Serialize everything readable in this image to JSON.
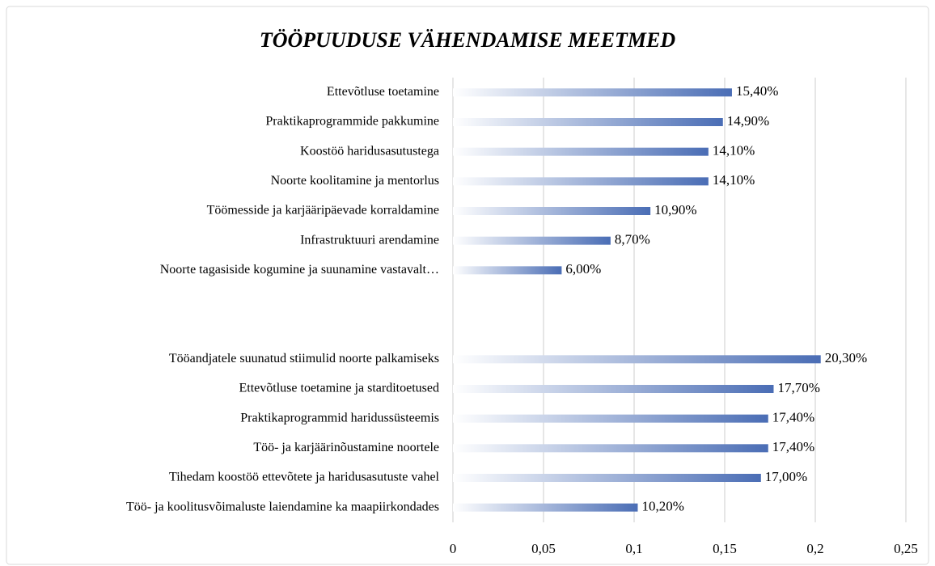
{
  "chart_data": {
    "type": "barh",
    "title": "TÖÖPUUDUSE VÄHENDAMISE MEETMED",
    "categories": [
      "Ettevõtluse toetamine",
      "Praktikaprogrammide pakkumine",
      "Koostöö haridusasutustega",
      "Noorte koolitamine ja mentorlus",
      "Töömesside ja karjääripäevade korraldamine",
      "Infrastruktuuri arendamine",
      "Noorte tagasiside kogumine ja suunamine vastavalt…",
      null,
      null,
      "Tööandjatele suunatud stiimulid noorte palkamiseks",
      "Ettevõtluse toetamine ja starditoetused",
      "Praktikaprogrammid haridussüsteemis",
      "Töö- ja karjäärinõustamine noortele",
      "Tihedam koostöö ettevõtete ja haridusasutuste vahel",
      "Töö- ja koolitusvõimaluste laiendamine ka maapiirkondades"
    ],
    "values": [
      0.154,
      0.149,
      0.141,
      0.141,
      0.109,
      0.087,
      0.06,
      null,
      null,
      0.203,
      0.177,
      0.174,
      0.174,
      0.17,
      0.102
    ],
    "value_labels": [
      "15,40%",
      "14,90%",
      "14,10%",
      "14,10%",
      "10,90%",
      "8,70%",
      "6,00%",
      null,
      null,
      "20,30%",
      "17,70%",
      "17,40%",
      "17,40%",
      "17,00%",
      "10,20%"
    ],
    "color": "#4a6db5",
    "xlim": [
      0,
      0.25
    ],
    "xticks": [
      0,
      {
        "value": 0.05,
        "label": "0,05"
      },
      {
        "value": 0.1,
        "label": "0,1"
      },
      {
        "value": 0.15,
        "label": "0,15"
      },
      {
        "value": 0.2,
        "label": "0,2"
      },
      {
        "value": 0.25,
        "label": "0,25"
      }
    ],
    "grid": true
  }
}
